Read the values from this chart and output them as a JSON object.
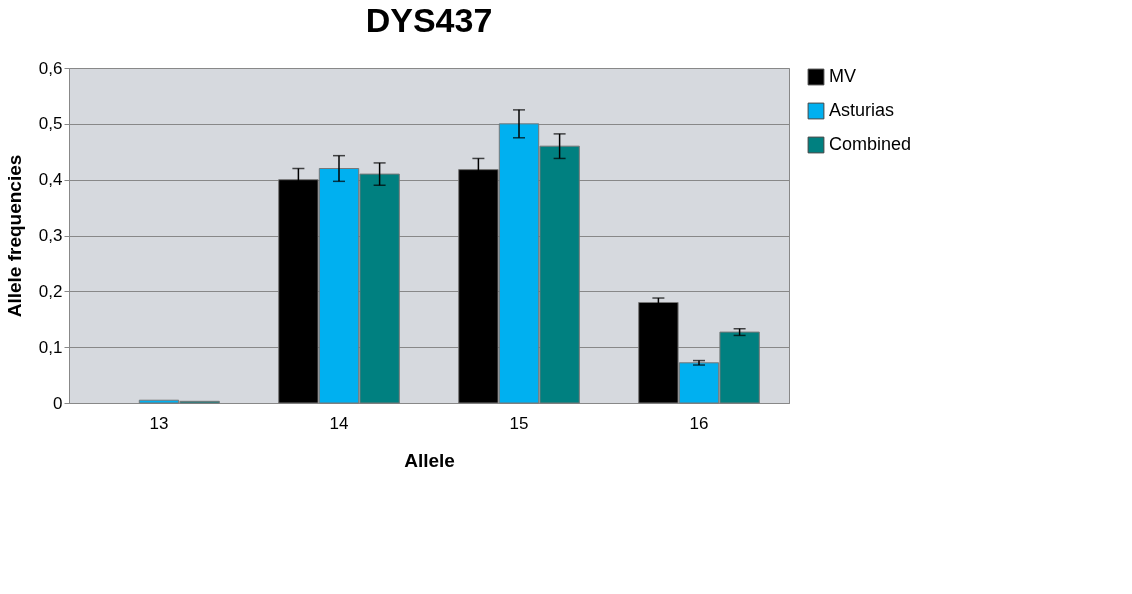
{
  "chart_data": {
    "type": "bar",
    "title": "DYS437",
    "xlabel": "Allele",
    "ylabel": "Allele frequencies",
    "categories": [
      "13",
      "14",
      "15",
      "16"
    ],
    "series": [
      {
        "name": "MV",
        "color": "#000000",
        "values": [
          null,
          0.4,
          0.418,
          0.18
        ],
        "errors": [
          null,
          0.02,
          0.02,
          0.008
        ]
      },
      {
        "name": "Asturias",
        "color": "#00b0f0",
        "values": [
          0.005,
          0.42,
          0.5,
          0.072
        ],
        "errors": [
          null,
          0.023,
          0.025,
          0.004
        ]
      },
      {
        "name": "Combined",
        "color": "#008080",
        "values": [
          0.003,
          0.41,
          0.46,
          0.127
        ],
        "errors": [
          null,
          0.02,
          0.022,
          0.006
        ]
      }
    ],
    "ylim": [
      0,
      0.6
    ],
    "yticks": [
      {
        "value": 0,
        "label": "0"
      },
      {
        "value": 0.1,
        "label": "0,1"
      },
      {
        "value": 0.2,
        "label": "0,2"
      },
      {
        "value": 0.3,
        "label": "0,3"
      },
      {
        "value": 0.4,
        "label": "0,4"
      },
      {
        "value": 0.5,
        "label": "0,5"
      },
      {
        "value": 0.6,
        "label": "0,6"
      }
    ],
    "grid": "y",
    "legend": "right"
  }
}
